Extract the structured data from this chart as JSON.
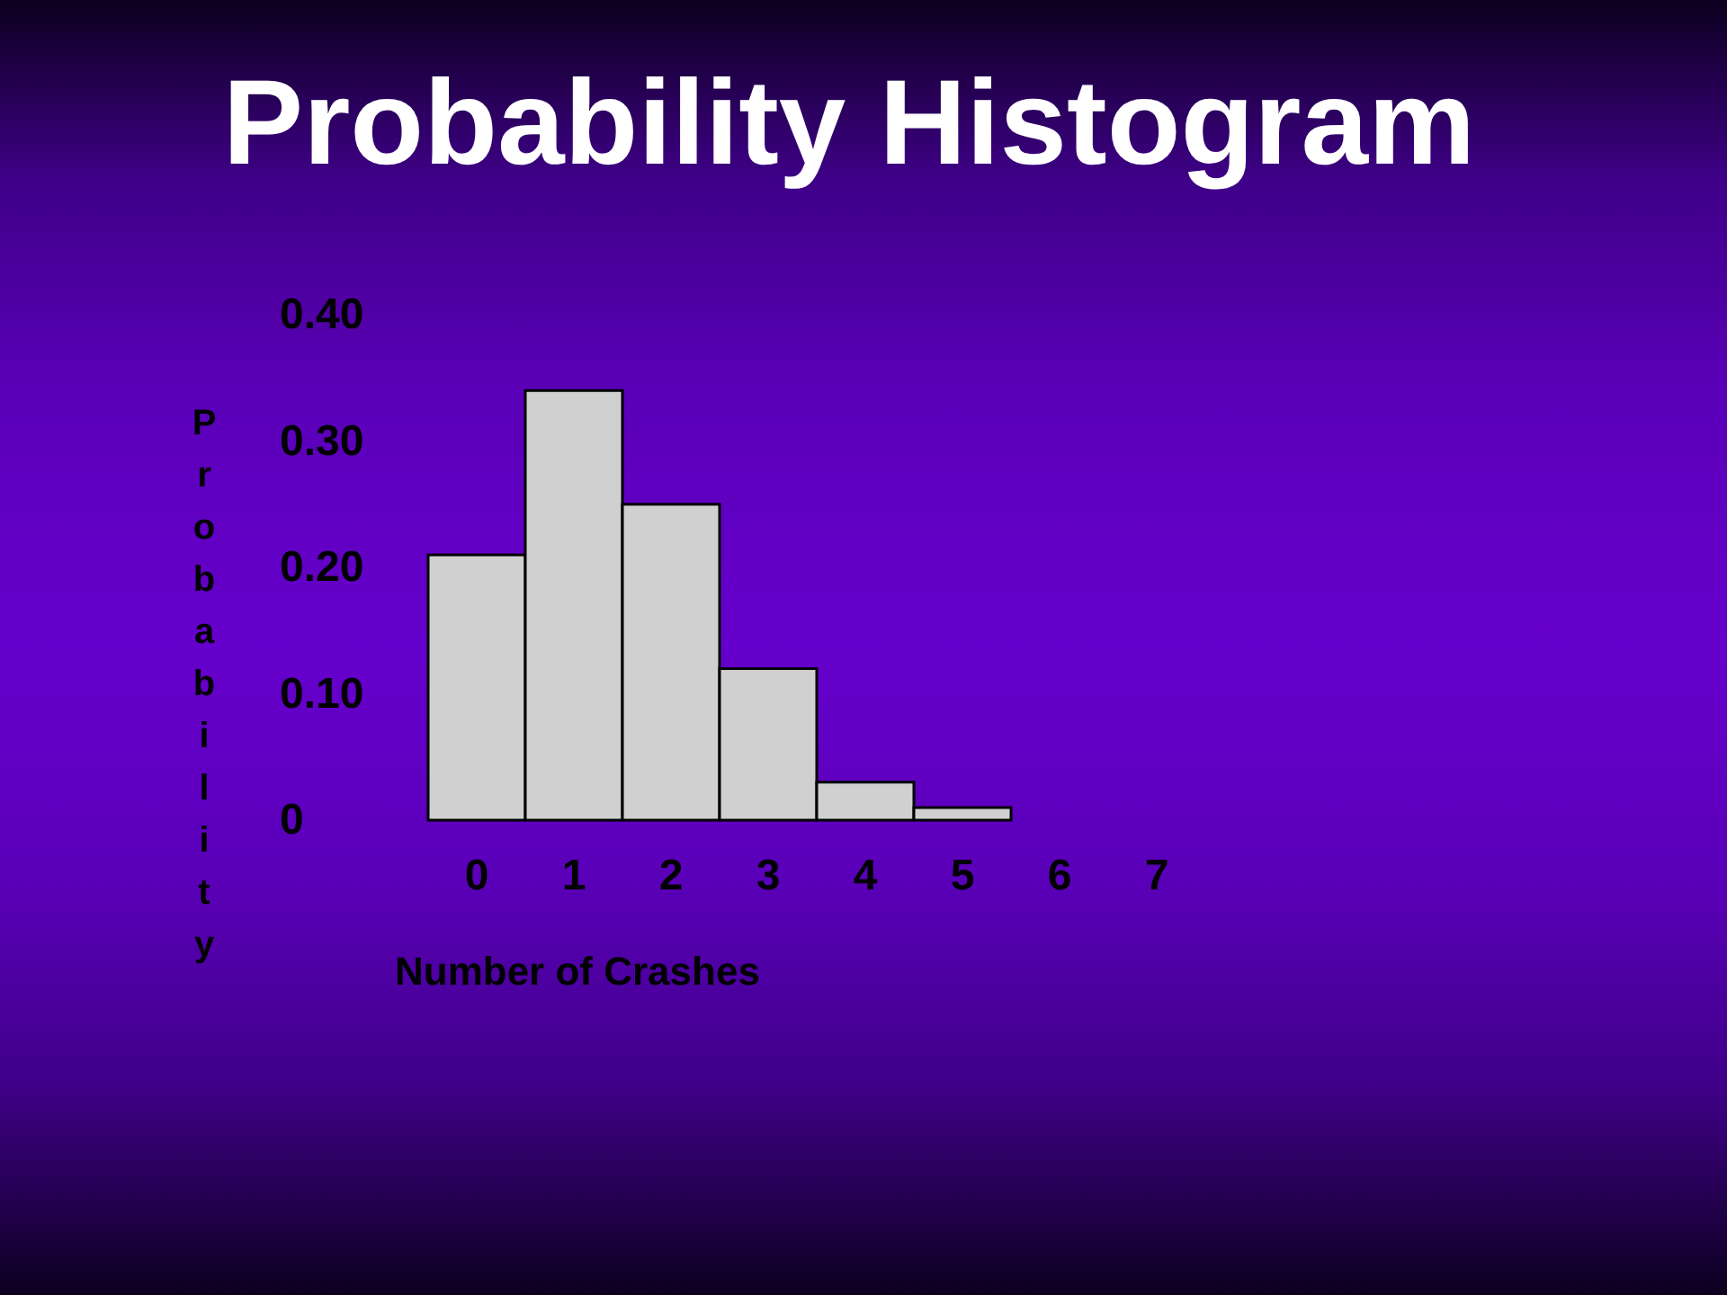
{
  "chart_data": {
    "type": "bar",
    "title": "Probability Histogram",
    "xlabel": "Number of Crashes",
    "ylabel": "Probability",
    "categories": [
      "0",
      "1",
      "2",
      "3",
      "4",
      "5",
      "6",
      "7"
    ],
    "values": [
      0.21,
      0.34,
      0.25,
      0.12,
      0.03,
      0.01,
      null,
      null
    ],
    "color": "#d0d0d0",
    "ylim": [
      0,
      0.4
    ],
    "yticks": [
      0,
      {
        "value": 0.1,
        "label": "0.10"
      },
      {
        "value": 0.2,
        "label": "0.20"
      },
      {
        "value": 0.3,
        "label": "0.30"
      },
      {
        "value": 0.4,
        "label": "0.40"
      }
    ]
  }
}
